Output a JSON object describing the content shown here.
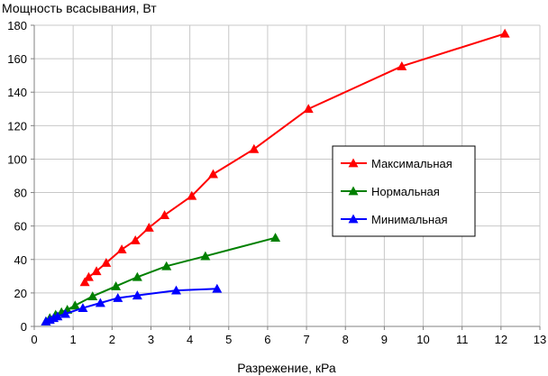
{
  "chart_data": {
    "type": "line",
    "title": "",
    "ylabel": "Мощность всасывания, Вт",
    "xlabel": "Разрежение, кРа",
    "xlim": [
      0,
      13
    ],
    "ylim": [
      0,
      180
    ],
    "xticks": [
      0,
      1,
      2,
      3,
      4,
      5,
      6,
      7,
      8,
      9,
      10,
      11,
      12,
      13
    ],
    "yticks": [
      0,
      20,
      40,
      60,
      80,
      100,
      120,
      140,
      160,
      180
    ],
    "grid": true,
    "legend_position": "right",
    "series": [
      {
        "name": "Максимальная",
        "color": "#ff0000",
        "marker": "triangle",
        "points": [
          [
            1.3,
            26.5
          ],
          [
            1.4,
            29.5
          ],
          [
            1.6,
            33
          ],
          [
            1.85,
            38
          ],
          [
            2.25,
            46
          ],
          [
            2.6,
            51.5
          ],
          [
            2.95,
            59
          ],
          [
            3.35,
            66.5
          ],
          [
            4.05,
            78
          ],
          [
            4.6,
            91
          ],
          [
            5.65,
            106
          ],
          [
            7.05,
            130
          ],
          [
            9.45,
            155.5
          ],
          [
            12.1,
            175
          ]
        ]
      },
      {
        "name": "Нормальная",
        "color": "#008000",
        "marker": "triangle",
        "points": [
          [
            0.3,
            3
          ],
          [
            0.4,
            5
          ],
          [
            0.55,
            7
          ],
          [
            0.7,
            8.5
          ],
          [
            0.85,
            10
          ],
          [
            1.05,
            12.5
          ],
          [
            1.5,
            18
          ],
          [
            2.1,
            24
          ],
          [
            2.65,
            29.5
          ],
          [
            3.4,
            36
          ],
          [
            4.4,
            42
          ],
          [
            6.2,
            53
          ]
        ]
      },
      {
        "name": "Минимальная",
        "color": "#0000ff",
        "marker": "triangle",
        "points": [
          [
            0.3,
            3
          ],
          [
            0.4,
            4
          ],
          [
            0.5,
            5
          ],
          [
            0.6,
            6
          ],
          [
            0.8,
            7.5
          ],
          [
            1.25,
            11
          ],
          [
            1.7,
            14
          ],
          [
            2.15,
            17
          ],
          [
            2.65,
            18.5
          ],
          [
            3.65,
            21.5
          ],
          [
            4.7,
            22.5
          ]
        ]
      }
    ]
  }
}
